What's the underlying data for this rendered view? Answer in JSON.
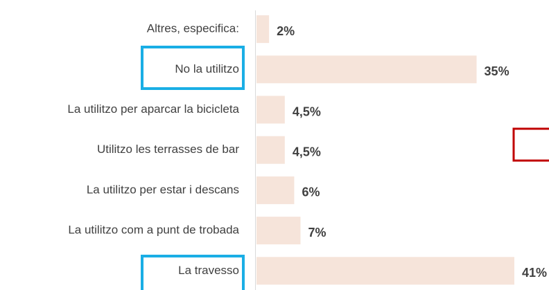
{
  "chart_data": {
    "type": "bar",
    "orientation": "horizontal",
    "categories": [
      "Altres, especifica:",
      "No la utilitzo",
      "La utilitzo per aparcar la bicicleta",
      "Utilitzo les terrasses de bar",
      "La utilitzo per estar i descans",
      "La utilitzo com a punt de trobada",
      "La travesso"
    ],
    "values": [
      2,
      35,
      4.5,
      4.5,
      6,
      7,
      41
    ],
    "value_labels": [
      "2%",
      "35%",
      "4,5%",
      "4,5%",
      "6%",
      "7%",
      "41%"
    ],
    "color": "#f6e4da"
  }
}
